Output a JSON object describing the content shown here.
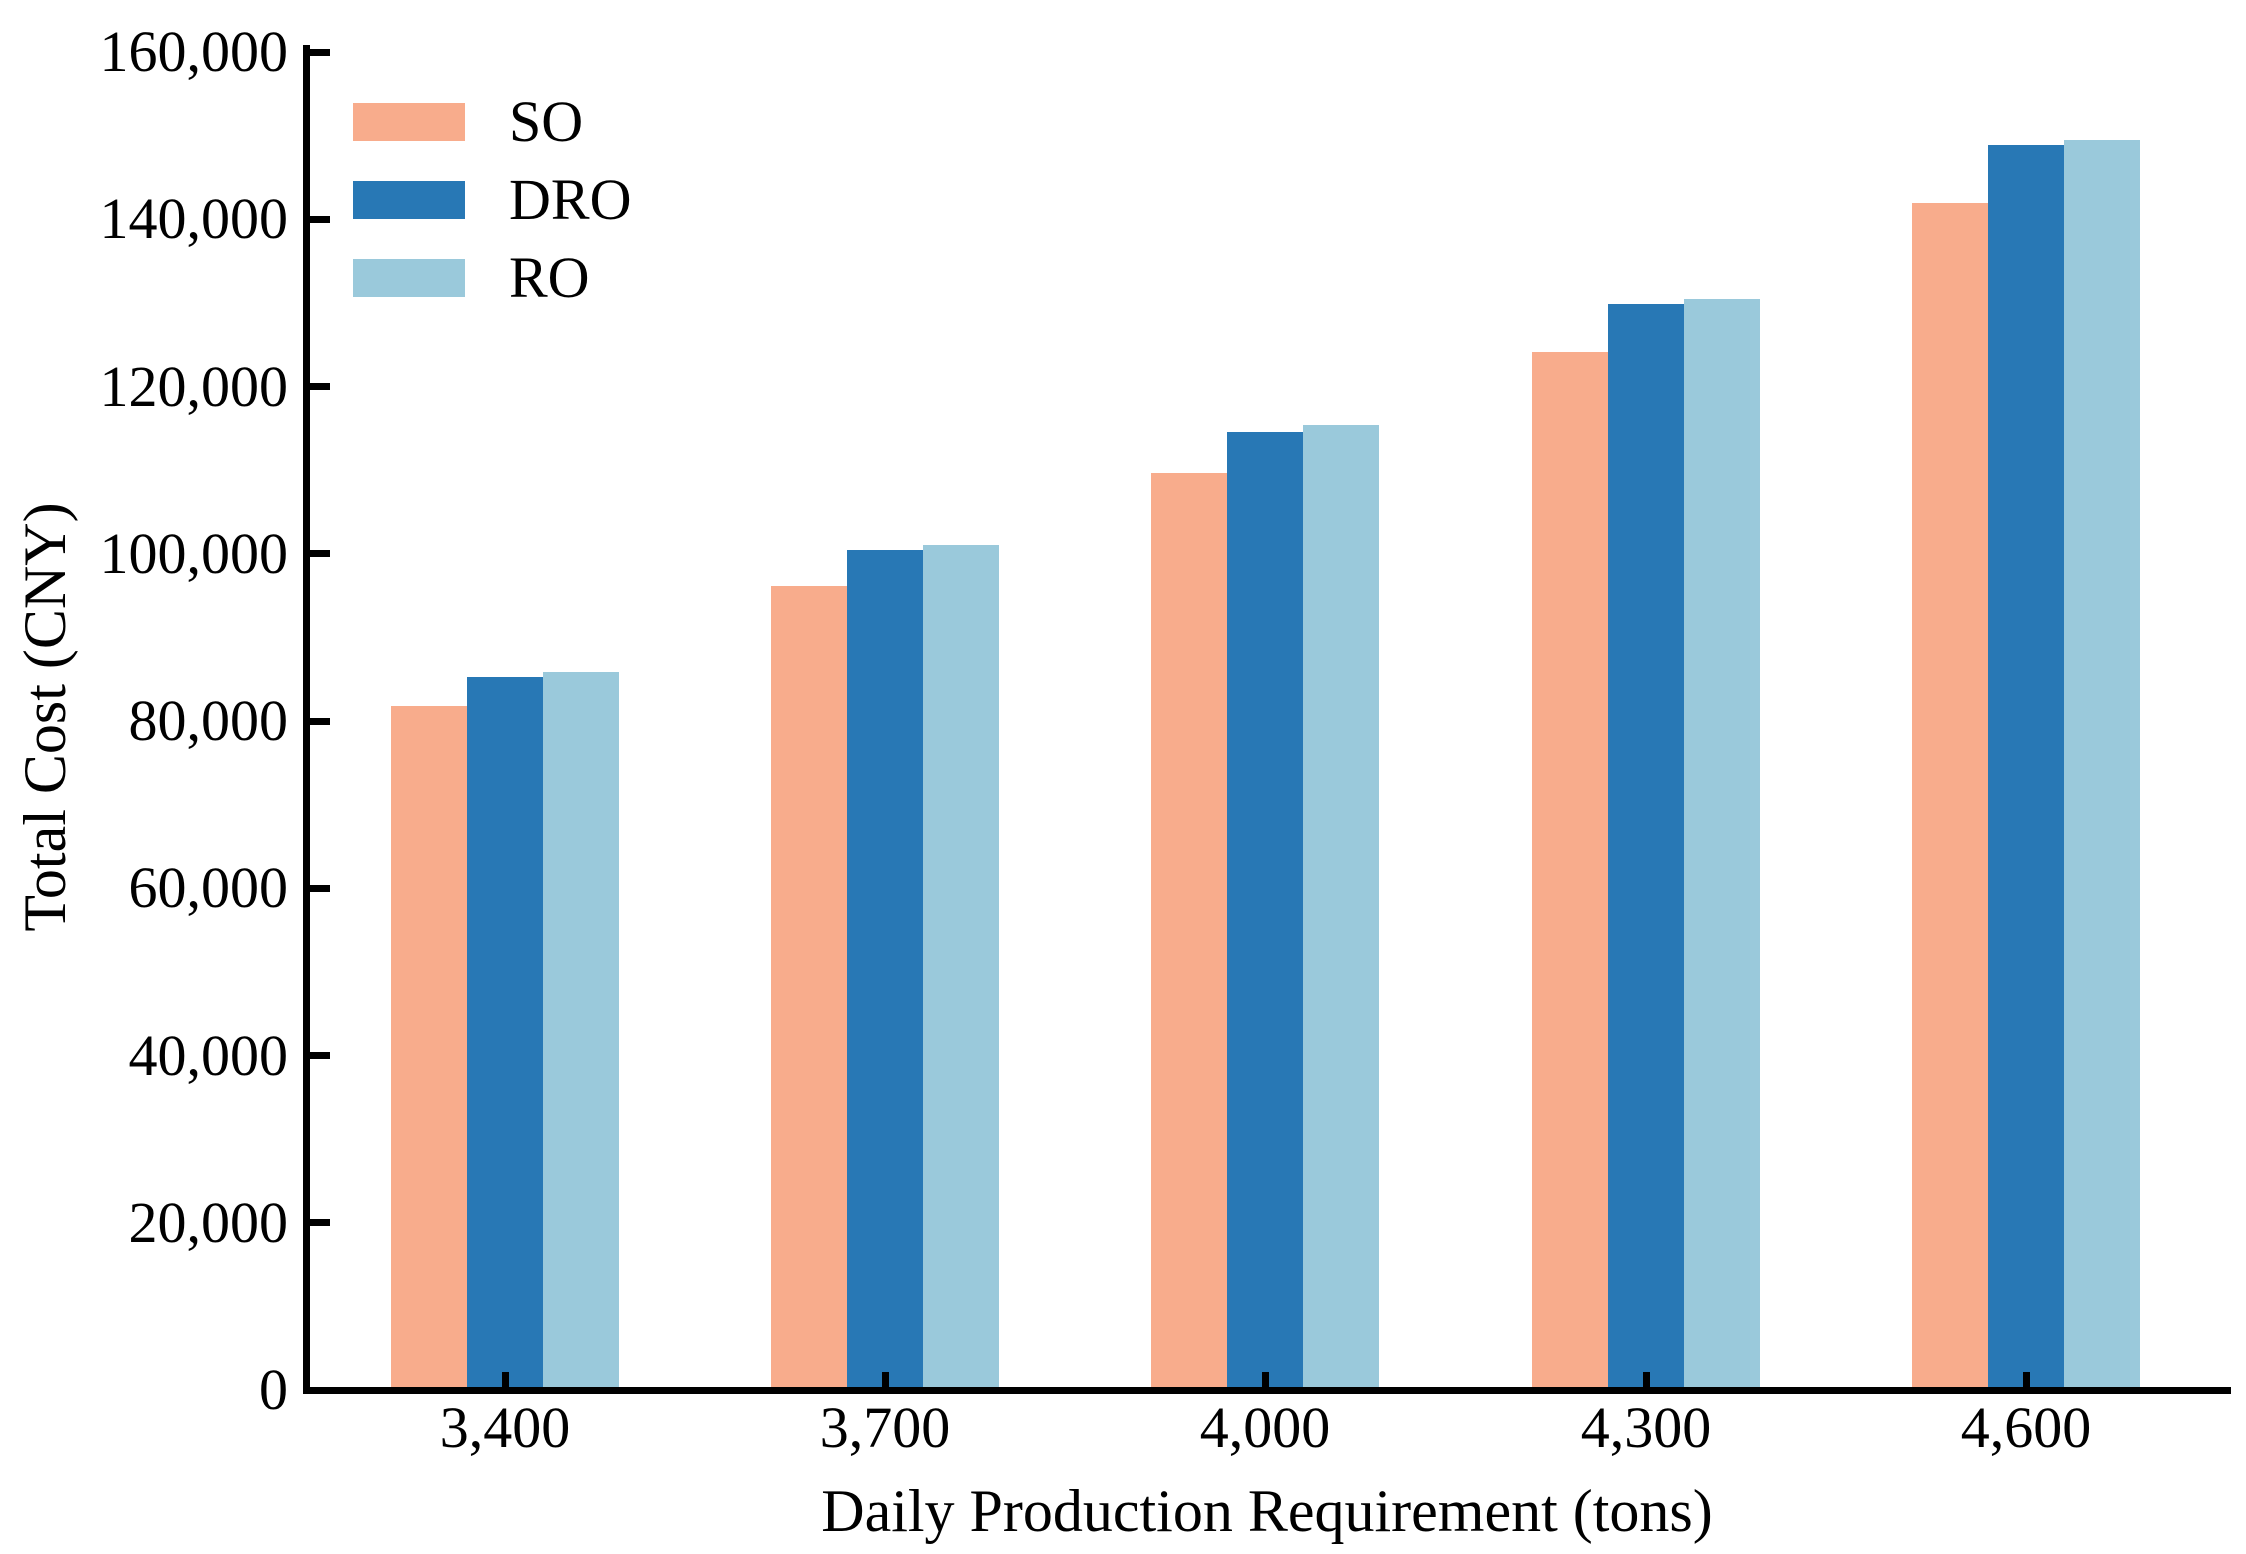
{
  "chart_data": {
    "type": "bar",
    "title": "",
    "xlabel": "Daily Production Requirement (tons)",
    "ylabel": "Total Cost (CNY)",
    "categories": [
      "3,400",
      "3,700",
      "4,000",
      "4,300",
      "4,600"
    ],
    "series": [
      {
        "name": "SO",
        "color": "#F8AC8C",
        "values": [
          81800,
          96200,
          109700,
          124100,
          141900
        ]
      },
      {
        "name": "DRO",
        "color": "#2878B5",
        "values": [
          85300,
          100500,
          114600,
          129900,
          148900
        ]
      },
      {
        "name": "RO",
        "color": "#9AC9DB",
        "values": [
          85900,
          101100,
          115400,
          130500,
          149500
        ]
      }
    ],
    "ylim": [
      0,
      160000
    ],
    "ytick_step": 20000,
    "ytick_labels": [
      "0",
      "20,000",
      "40,000",
      "60,000",
      "80,000",
      "100,000",
      "120,000",
      "140,000",
      "160,000"
    ],
    "legend_position": "upper-left",
    "grid": false
  },
  "colors": {
    "axis": "#000000",
    "text": "#000000",
    "background": "#ffffff"
  }
}
